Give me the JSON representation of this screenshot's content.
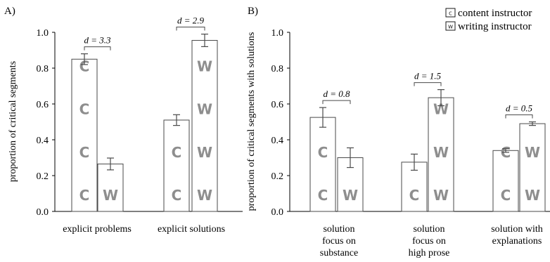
{
  "chart_data": [
    {
      "type": "bar",
      "panel_label": "A)",
      "ylabel": "proportion of critical segments",
      "ylim": [
        0,
        1.0
      ],
      "yticks": [
        "0.0",
        "0.2",
        "0.4",
        "0.6",
        "0.8",
        "1.0"
      ],
      "grid": false,
      "categories": [
        {
          "lines": [
            "explicit problems"
          ]
        },
        {
          "lines": [
            "explicit solutions"
          ]
        }
      ],
      "series": [
        {
          "name": "content instructor",
          "key": "C",
          "values": [
            0.85,
            0.51
          ],
          "errors": [
            0.03,
            0.03
          ]
        },
        {
          "name": "writing instructor",
          "key": "W",
          "values": [
            0.265,
            0.955
          ],
          "errors": [
            0.033,
            0.035
          ]
        }
      ],
      "annotations": [
        "d = 3.3",
        "d = 2.9"
      ]
    },
    {
      "type": "bar",
      "panel_label": "B)",
      "ylabel": "proportion of critical segments with solutions",
      "ylim": [
        0,
        1.0
      ],
      "yticks": [
        "0.0",
        "0.2",
        "0.4",
        "0.6",
        "0.8",
        "1.0"
      ],
      "grid": false,
      "legend_position": "top-right",
      "categories": [
        {
          "lines": [
            "solution",
            "focus on",
            "substance"
          ]
        },
        {
          "lines": [
            "solution",
            "focus on",
            "high prose"
          ]
        },
        {
          "lines": [
            "solution with",
            "explanations"
          ]
        }
      ],
      "series": [
        {
          "name": "content instructor",
          "key": "C",
          "values": [
            0.525,
            0.275,
            0.34
          ],
          "errors": [
            0.055,
            0.045,
            0.01
          ]
        },
        {
          "name": "writing instructor",
          "key": "W",
          "values": [
            0.3,
            0.635,
            0.49
          ],
          "errors": [
            0.055,
            0.045,
            0.01
          ]
        }
      ],
      "annotations": [
        "d = 0.8",
        "d = 1.5",
        "d = 0.5"
      ]
    }
  ],
  "legend": [
    {
      "key": "C",
      "label": "content instructor"
    },
    {
      "key": "W",
      "label": "writing instructor"
    }
  ]
}
